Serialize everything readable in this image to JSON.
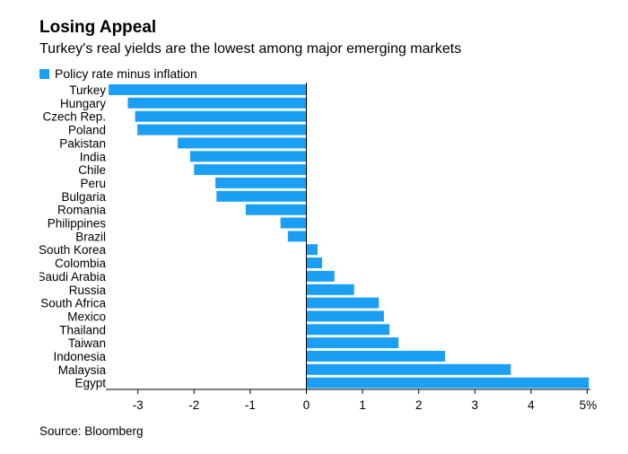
{
  "title": "Losing Appeal",
  "subtitle": "Turkey's real yields are the lowest among major emerging markets",
  "source": "Source: Bloomberg",
  "colors": {
    "bar": "#1a9ff5",
    "axis": "#000000",
    "baseline": "#000000"
  },
  "chart_data": {
    "type": "bar",
    "orientation": "horizontal",
    "legend": {
      "position": "top-left",
      "entries": [
        "Policy rate minus inflation"
      ]
    },
    "series": [
      {
        "name": "Policy rate minus inflation",
        "values": [
          -3.52,
          -3.18,
          -3.05,
          -3.01,
          -2.29,
          -2.07,
          -2.0,
          -1.62,
          -1.6,
          -1.08,
          -0.46,
          -0.33,
          0.2,
          0.28,
          0.5,
          0.85,
          1.29,
          1.38,
          1.48,
          1.64,
          2.47,
          3.64,
          5.03
        ]
      }
    ],
    "categories": [
      "Turkey",
      "Hungary",
      "Czech Rep.",
      "Poland",
      "Pakistan",
      "India",
      "Chile",
      "Peru",
      "Bulgaria",
      "Romania",
      "Philippines",
      "Brazil",
      "South Korea",
      "Colombia",
      "Saudi Arabia",
      "Russia",
      "South Africa",
      "Mexico",
      "Thailand",
      "Taiwan",
      "Indonesia",
      "Malaysia",
      "Egypt"
    ],
    "x_ticks": [
      -3,
      -2,
      -1,
      0,
      1,
      2,
      3,
      4,
      5
    ],
    "x_tick_labels": [
      "-3",
      "-2",
      "-1",
      "0",
      "1",
      "2",
      "3",
      "4",
      "5%"
    ],
    "xlim": [
      -3.6,
      5.1
    ],
    "grid": false
  }
}
